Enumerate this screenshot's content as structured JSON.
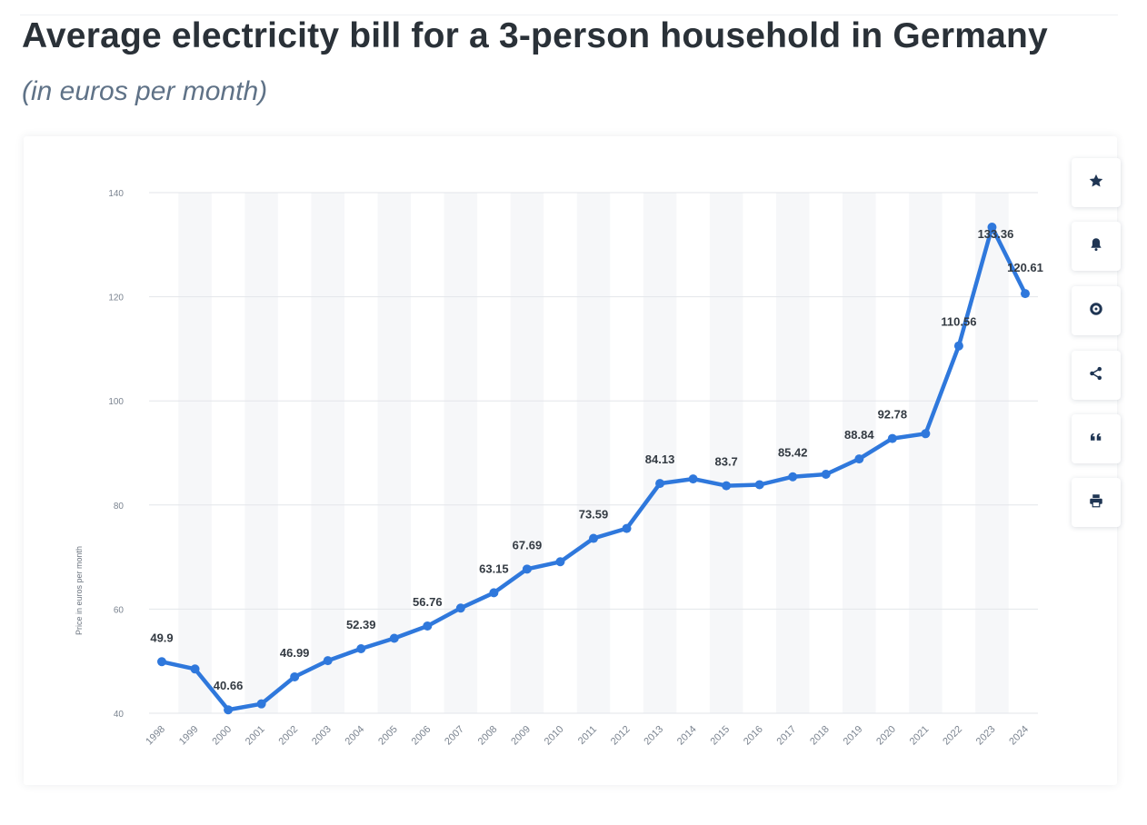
{
  "header": {
    "title": "Average electricity bill for a 3-person household in Germany",
    "subtitle": "(in euros per month)"
  },
  "toolbar": {
    "buttons": [
      {
        "name": "favorite-button",
        "icon": "star-icon"
      },
      {
        "name": "notification-button",
        "icon": "bell-icon"
      },
      {
        "name": "settings-button",
        "icon": "gear-icon"
      },
      {
        "name": "share-button",
        "icon": "share-icon"
      },
      {
        "name": "cite-button",
        "icon": "quote-icon"
      },
      {
        "name": "print-button",
        "icon": "print-icon"
      }
    ],
    "icon_color": "#1f3553"
  },
  "chart_data": {
    "type": "line",
    "title": "",
    "xlabel": "",
    "ylabel": "Price in euros per month",
    "categories": [
      "1998",
      "1999",
      "2000",
      "2001",
      "2002",
      "2003",
      "2004",
      "2005",
      "2006",
      "2007",
      "2008",
      "2009",
      "2010",
      "2011",
      "2012",
      "2013",
      "2014",
      "2015",
      "2016",
      "2017",
      "2018",
      "2019",
      "2020",
      "2021",
      "2022",
      "2023",
      "2024"
    ],
    "series": [
      {
        "values": [
          49.9,
          48.5,
          40.66,
          41.8,
          46.99,
          50.1,
          52.39,
          54.4,
          56.76,
          60.2,
          63.15,
          67.69,
          69.1,
          73.59,
          75.5,
          84.13,
          85.0,
          83.7,
          83.9,
          85.42,
          85.9,
          88.84,
          92.78,
          93.7,
          110.56,
          133.36,
          120.61
        ],
        "color": "#2f78dc"
      }
    ],
    "data_labels": {
      "1998": "49.9",
      "2000": "40.66",
      "2002": "46.99",
      "2004": "52.39",
      "2006": "56.76",
      "2008": "63.15",
      "2009": "67.69",
      "2011": "73.59",
      "2013": "84.13",
      "2015": "83.7",
      "2017": "85.42",
      "2019": "88.84",
      "2020": "92.78",
      "2022": "110.56",
      "2023": "133.36",
      "2024": "120.61"
    },
    "ylim": [
      40,
      140
    ],
    "yticks": [
      40,
      60,
      80,
      100,
      120,
      140
    ],
    "grid": true,
    "legend": "none"
  }
}
